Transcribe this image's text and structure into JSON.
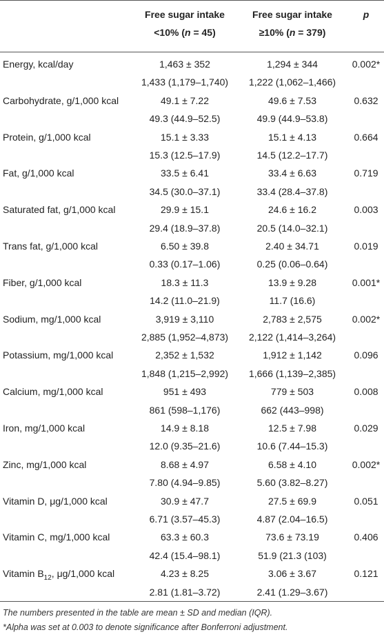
{
  "table": {
    "header": {
      "columns": [
        {
          "line1": "Free sugar intake",
          "line2": [
            "<10% (",
            "n",
            " = 45)"
          ]
        },
        {
          "line1": "Free sugar intake",
          "line2": [
            "≥10% (",
            "n",
            " = 379)"
          ]
        }
      ],
      "p": "p"
    },
    "rows": [
      {
        "label": [
          "Energy, kcal/day"
        ],
        "mean": [
          "1,463 ± 352",
          "1,294 ± 344"
        ],
        "median": [
          "1,433 (1,179–1,740)",
          "1,222 (1,062–1,466)"
        ],
        "p": "0.002*"
      },
      {
        "label": [
          "Carbohydrate, g/1,000 kcal"
        ],
        "mean": [
          "49.1 ± 7.22",
          "49.6 ± 7.53"
        ],
        "median": [
          "49.3 (44.9–52.5)",
          "49.9 (44.9–53.8)"
        ],
        "p": "0.632"
      },
      {
        "label": [
          "Protein, g/1,000 kcal"
        ],
        "mean": [
          "15.1 ± 3.33",
          "15.1 ± 4.13"
        ],
        "median": [
          "15.3 (12.5–17.9)",
          "14.5 (12.2–17.7)"
        ],
        "p": "0.664"
      },
      {
        "label": [
          "Fat, g/1,000 kcal"
        ],
        "mean": [
          "33.5 ± 6.41",
          "33.4 ± 6.63"
        ],
        "median": [
          "34.5 (30.0–37.1)",
          "33.4 (28.4–37.8)"
        ],
        "p": "0.719"
      },
      {
        "label": [
          "Saturated fat, g/1,000 kcal"
        ],
        "mean": [
          "29.9 ± 15.1",
          "24.6 ± 16.2"
        ],
        "median": [
          "29.4 (18.9–37.8)",
          "20.5 (14.0–32.1)"
        ],
        "p": "0.003"
      },
      {
        "label": [
          "Trans fat, g/1,000 kcal"
        ],
        "mean": [
          "6.50 ± 39.8",
          "2.40 ± 34.71"
        ],
        "median": [
          "0.33 (0.17–1.06)",
          "0.25 (0.06–0.64)"
        ],
        "p": "0.019"
      },
      {
        "label": [
          "Fiber, g/1,000 kcal"
        ],
        "mean": [
          "18.3 ± 11.3",
          "13.9 ± 9.28"
        ],
        "median": [
          "14.2 (11.0–21.9)",
          "11.7 (16.6)"
        ],
        "p": "0.001*"
      },
      {
        "label": [
          "Sodium, mg/1,000 kcal"
        ],
        "mean": [
          "3,919 ± 3,110",
          "2,783 ± 2,575"
        ],
        "median": [
          "2,885 (1,952–4,873)",
          "2,122 (1,414–3,264)"
        ],
        "p": "0.002*"
      },
      {
        "label": [
          "Potassium, mg/1,000 kcal"
        ],
        "mean": [
          "2,352 ± 1,532",
          "1,912 ± 1,142"
        ],
        "median": [
          "1,848 (1,215–2,992)",
          "1,666 (1,139–2,385)"
        ],
        "p": "0.096"
      },
      {
        "label": [
          "Calcium, mg/1,000 kcal"
        ],
        "mean": [
          "951 ± 493",
          "779 ± 503"
        ],
        "median": [
          "861 (598–1,176)",
          "662 (443–998)"
        ],
        "p": "0.008"
      },
      {
        "label": [
          "Iron, mg/1,000 kcal"
        ],
        "mean": [
          "14.9 ± 8.18",
          "12.5 ± 7.98"
        ],
        "median": [
          "12.0 (9.35–21.6)",
          "10.6 (7.44–15.3)"
        ],
        "p": "0.029"
      },
      {
        "label": [
          "Zinc, mg/1,000 kcal"
        ],
        "mean": [
          "8.68 ± 4.97",
          "6.58 ± 4.10"
        ],
        "median": [
          "7.80 (4.94–9.85)",
          "5.60 (3.82–8.27)"
        ],
        "p": "0.002*"
      },
      {
        "label": [
          "Vitamin D, μg/1,000 kcal"
        ],
        "mean": [
          "30.9 ± 47.7",
          "27.5 ± 69.9"
        ],
        "median": [
          "6.71 (3.57–45.3)",
          "4.87 (2.04–16.5)"
        ],
        "p": "0.051"
      },
      {
        "label": [
          "Vitamin C, mg/1,000 kcal"
        ],
        "mean": [
          "63.3 ± 60.3",
          "73.6 ± 73.19"
        ],
        "median": [
          "42.4 (15.4–98.1)",
          "51.9 (21.3 (103)"
        ],
        "p": "0.406"
      },
      {
        "label": [
          "Vitamin B",
          "12",
          ", μg/1,000 kcal"
        ],
        "mean": [
          "4.23 ± 8.25",
          "3.06 ± 3.67"
        ],
        "median": [
          "2.81 (1.81–3.72)",
          "2.41 (1.29–3.67)"
        ],
        "p": "0.121"
      }
    ],
    "footnotes": [
      "The numbers presented in the table are mean ± SD and median (IQR).",
      "*Alpha was set at 0.003 to denote significance after Bonferroni adjustment."
    ]
  }
}
